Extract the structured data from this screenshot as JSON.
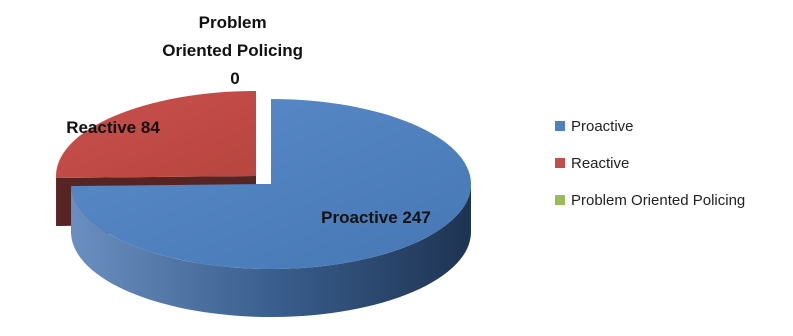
{
  "chart_data": {
    "type": "pie",
    "style": "3d-exploded",
    "categories": [
      "Proactive",
      "Reactive",
      "Problem Oriented Policing"
    ],
    "values": [
      247,
      84,
      0
    ],
    "colors": [
      "#4F81BD",
      "#C0504D",
      "#9BBB59"
    ],
    "data_labels": [
      {
        "category": "Proactive",
        "value": "247"
      },
      {
        "category": "Reactive",
        "value": "84"
      },
      {
        "category": "Problem Oriented Policing",
        "value": "0"
      }
    ],
    "legend": {
      "placement": "right",
      "entries": [
        "Proactive",
        "Reactive",
        "Problem Oriented Policing"
      ]
    }
  }
}
